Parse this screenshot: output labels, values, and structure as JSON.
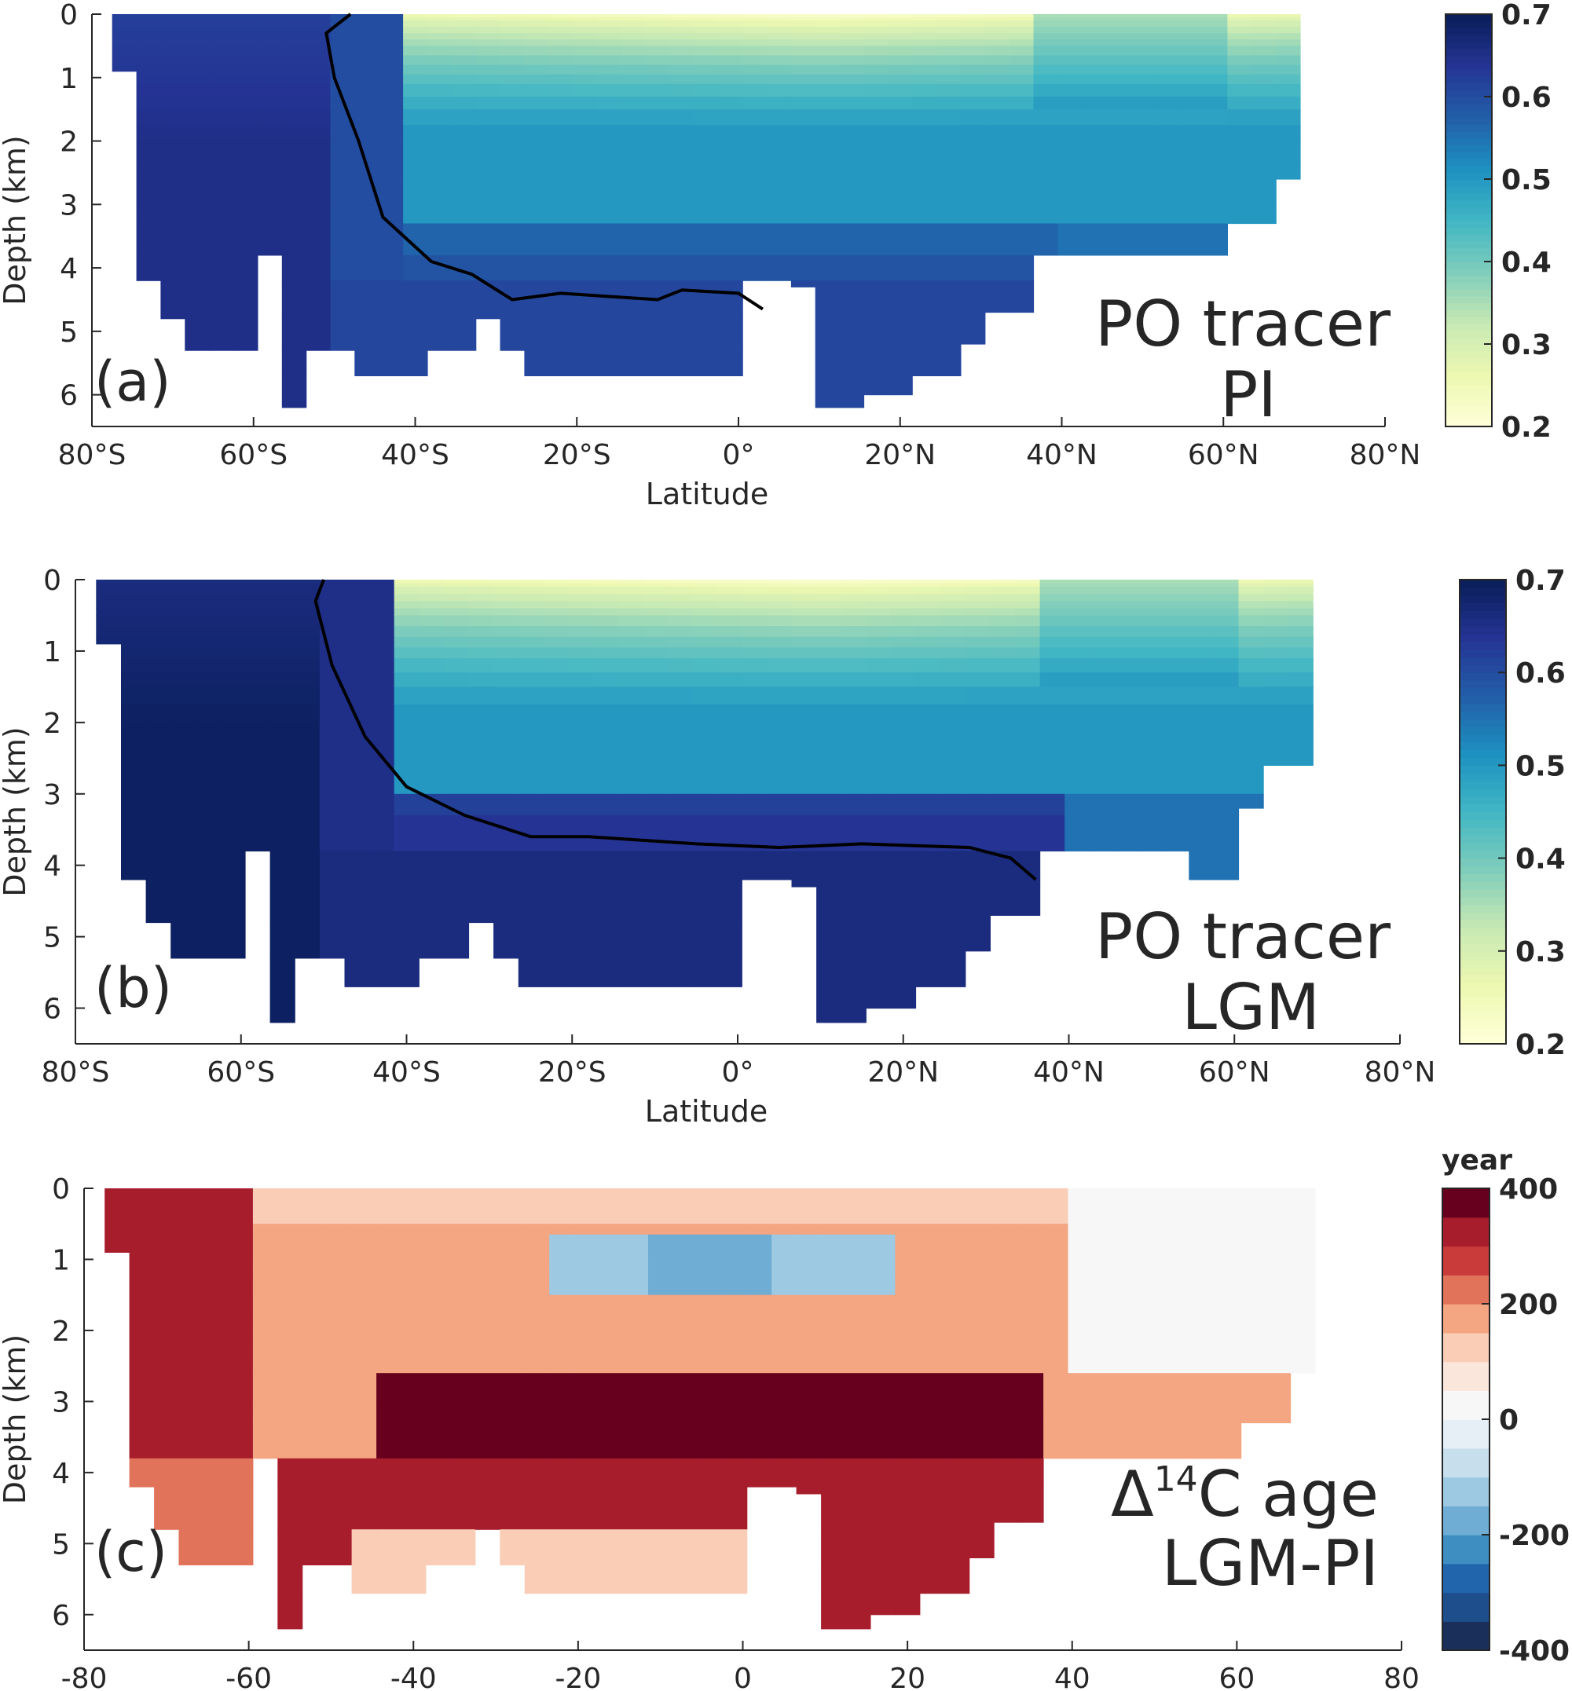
{
  "chart_data": [
    {
      "type": "heatmap",
      "panel_letter": "(a)",
      "label_lines": [
        "PO tracer",
        "PI"
      ],
      "xlabel": "Latitude",
      "ylabel": "Depth (km)",
      "xlim": [
        -80,
        80
      ],
      "ylim": [
        6.5,
        0
      ],
      "x_ticks": [
        -80,
        -60,
        -40,
        -20,
        0,
        20,
        40,
        60,
        80
      ],
      "x_tick_labels": [
        "80°S",
        "60°S",
        "40°S",
        "20°S",
        "0°",
        "20°N",
        "40°N",
        "60°N",
        "80°N"
      ],
      "y_ticks": [
        0,
        1,
        2,
        3,
        4,
        5,
        6
      ],
      "y_tick_labels": [
        "0",
        "1",
        "2",
        "3",
        "4",
        "5",
        "6"
      ],
      "colorbar": {
        "range": [
          0.2,
          0.7
        ],
        "tick_values": [
          0.2,
          0.3,
          0.4,
          0.5,
          0.6,
          0.7
        ],
        "tick_labels": [
          "0.2",
          "0.3",
          "0.4",
          "0.5",
          "0.6",
          "0.7"
        ],
        "colormap": [
          "#ffffd9",
          "#edf8b1",
          "#c7e9b4",
          "#7fcdbb",
          "#41b6c4",
          "#1d91c0",
          "#225ea8",
          "#253494",
          "#081d58"
        ]
      },
      "contour": [
        [
          -48,
          0
        ],
        [
          -51,
          0.3
        ],
        [
          -50,
          1
        ],
        [
          -47,
          2
        ],
        [
          -44,
          3.2
        ],
        [
          -38,
          3.9
        ],
        [
          -33,
          4.1
        ],
        [
          -28,
          4.5
        ],
        [
          -22,
          4.4
        ],
        [
          -10,
          4.5
        ],
        [
          -7,
          4.35
        ],
        [
          0,
          4.4
        ],
        [
          3,
          4.65
        ]
      ]
    },
    {
      "type": "heatmap",
      "panel_letter": "(b)",
      "label_lines": [
        "PO tracer",
        "LGM"
      ],
      "xlabel": "Latitude",
      "ylabel": "Depth (km)",
      "xlim": [
        -80,
        80
      ],
      "ylim": [
        6.5,
        0
      ],
      "x_ticks": [
        -80,
        -60,
        -40,
        -20,
        0,
        20,
        40,
        60,
        80
      ],
      "x_tick_labels": [
        "80°S",
        "60°S",
        "40°S",
        "20°S",
        "0°",
        "20°N",
        "40°N",
        "60°N",
        "80°N"
      ],
      "y_ticks": [
        0,
        1,
        2,
        3,
        4,
        5,
        6
      ],
      "y_tick_labels": [
        "0",
        "1",
        "2",
        "3",
        "4",
        "5",
        "6"
      ],
      "colorbar": {
        "range": [
          0.2,
          0.7
        ],
        "tick_values": [
          0.2,
          0.3,
          0.4,
          0.5,
          0.6,
          0.7
        ],
        "tick_labels": [
          "0.2",
          "0.3",
          "0.4",
          "0.5",
          "0.6",
          "0.7"
        ],
        "colormap": [
          "#ffffd9",
          "#edf8b1",
          "#c7e9b4",
          "#7fcdbb",
          "#41b6c4",
          "#1d91c0",
          "#225ea8",
          "#253494",
          "#081d58"
        ]
      },
      "contour": [
        [
          -50,
          0
        ],
        [
          -51,
          0.3
        ],
        [
          -49,
          1.2
        ],
        [
          -45,
          2.2
        ],
        [
          -40,
          2.9
        ],
        [
          -33,
          3.3
        ],
        [
          -25,
          3.6
        ],
        [
          -18,
          3.6
        ],
        [
          -5,
          3.7
        ],
        [
          5,
          3.75
        ],
        [
          15,
          3.7
        ],
        [
          28,
          3.75
        ],
        [
          33,
          3.9
        ],
        [
          36,
          4.2
        ]
      ]
    },
    {
      "type": "heatmap",
      "panel_letter": "(c)",
      "label_lines": [
        "Δ14C age",
        "LGM-PI"
      ],
      "label_main": "Δ",
      "label_super": "14",
      "label_rest": "C age",
      "xlabel": "Latitude",
      "ylabel": "Depth (km)",
      "xlim": [
        -80,
        80
      ],
      "ylim": [
        6.5,
        0
      ],
      "x_ticks": [
        -80,
        -60,
        -40,
        -20,
        0,
        20,
        40,
        60,
        80
      ],
      "x_tick_labels": [
        "-80",
        "-60",
        "-40",
        "-20",
        "0",
        "20",
        "40",
        "60",
        "80"
      ],
      "y_ticks": [
        0,
        1,
        2,
        3,
        4,
        5,
        6
      ],
      "y_tick_labels": [
        "0",
        "1",
        "2",
        "3",
        "4",
        "5",
        "6"
      ],
      "colorbar": {
        "unit": "year",
        "range": [
          -400,
          400
        ],
        "steps": 16,
        "tick_values": [
          -400,
          -200,
          0,
          200,
          400
        ],
        "tick_labels": [
          "-400",
          "-200",
          "0",
          "200",
          "400"
        ],
        "colormap": [
          "#1a2f5a",
          "#1f4e8c",
          "#2166ac",
          "#3f8ec2",
          "#6fadd4",
          "#9ec9e2",
          "#c7dfed",
          "#e6eff6",
          "#f7f7f7",
          "#fbe6dc",
          "#f9cdb6",
          "#f4a582",
          "#e0735a",
          "#c93a3b",
          "#a71d2c",
          "#67001f"
        ]
      }
    }
  ]
}
